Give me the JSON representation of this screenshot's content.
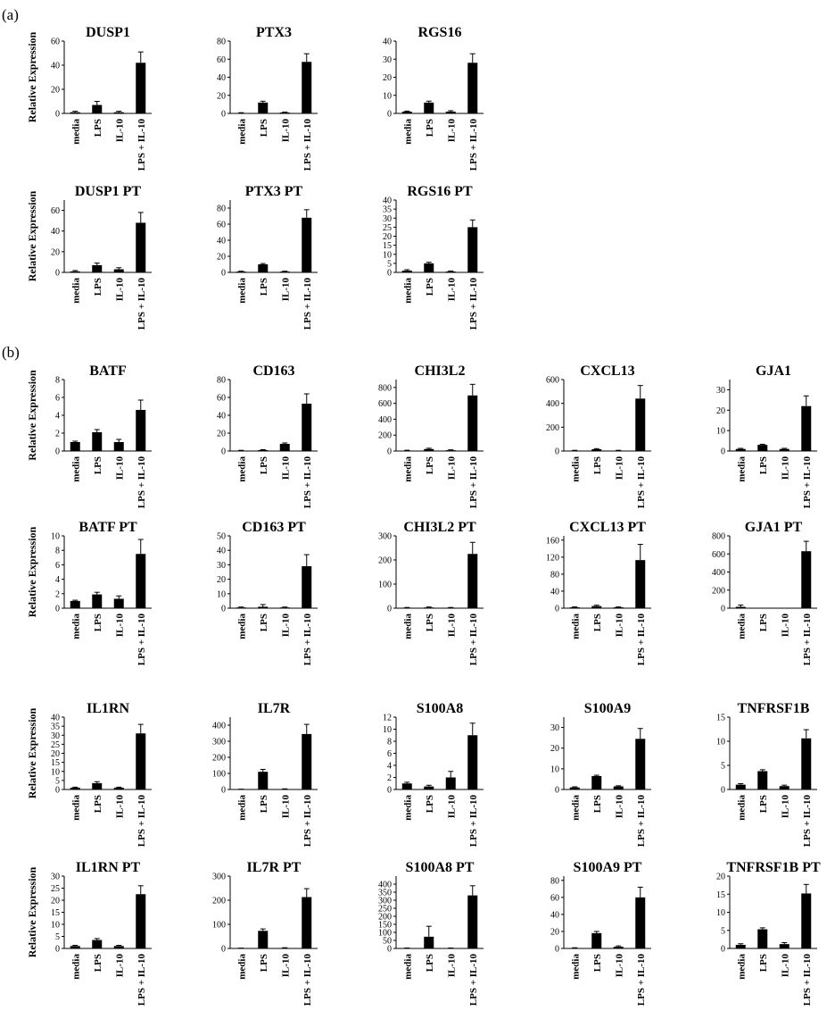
{
  "figure": {
    "panel_labels": [
      "(a)",
      "(b)"
    ],
    "ylabel": "Relative Expression"
  },
  "chart_data": [
    {
      "type": "bar",
      "title": "DUSP1",
      "categories": [
        "media",
        "LPS",
        "IL-10",
        "LPS + IL-10"
      ],
      "values": [
        1,
        7,
        1,
        42
      ],
      "errors": [
        0.8,
        3,
        0.8,
        9
      ],
      "ylim": [
        0,
        60
      ],
      "yticks": [
        0,
        20,
        40,
        60
      ],
      "ylabel": "Relative Expression",
      "grid": false
    },
    {
      "type": "bar",
      "title": "PTX3",
      "categories": [
        "media",
        "LPS",
        "IL-10",
        "LPS + IL-10"
      ],
      "values": [
        0.5,
        12,
        1,
        57
      ],
      "errors": [
        0.3,
        1.5,
        0.5,
        9
      ],
      "ylim": [
        0,
        80
      ],
      "yticks": [
        0,
        20,
        40,
        60,
        80
      ],
      "grid": false
    },
    {
      "type": "bar",
      "title": "RGS16",
      "categories": [
        "media",
        "LPS",
        "IL-10",
        "LPS + IL-10"
      ],
      "values": [
        1,
        6,
        1,
        28
      ],
      "errors": [
        0.3,
        0.8,
        0.5,
        5
      ],
      "ylim": [
        0,
        40
      ],
      "yticks": [
        0,
        10,
        20,
        30,
        40
      ],
      "grid": false
    },
    {
      "type": "bar",
      "title": "DUSP1 PT",
      "categories": [
        "media",
        "LPS",
        "IL-10",
        "LPS + IL-10"
      ],
      "values": [
        1,
        7,
        3,
        48
      ],
      "errors": [
        0.8,
        2,
        1.5,
        10
      ],
      "ylim": [
        0,
        70
      ],
      "yticks": [
        0,
        20,
        40,
        60
      ],
      "ylabel": "Relative Expression",
      "grid": false
    },
    {
      "type": "bar",
      "title": "PTX3 PT",
      "categories": [
        "media",
        "LPS",
        "IL-10",
        "LPS + IL-10"
      ],
      "values": [
        1,
        10,
        1,
        68
      ],
      "errors": [
        0.5,
        1,
        0.5,
        10
      ],
      "ylim": [
        0,
        90
      ],
      "yticks": [
        0,
        20,
        40,
        60,
        80
      ],
      "grid": false
    },
    {
      "type": "bar",
      "title": "RGS16 PT",
      "categories": [
        "media",
        "LPS",
        "IL-10",
        "LPS + IL-10"
      ],
      "values": [
        1,
        5,
        0.5,
        25
      ],
      "errors": [
        0.5,
        0.6,
        0.3,
        4
      ],
      "ylim": [
        0,
        40
      ],
      "yticks": [
        0,
        5,
        10,
        15,
        20,
        25,
        30,
        35,
        40
      ],
      "grid": false
    },
    {
      "type": "bar",
      "title": "BATF",
      "categories": [
        "media",
        "LPS",
        "IL-10",
        "LPS + IL-10"
      ],
      "values": [
        1,
        2.1,
        1,
        4.6
      ],
      "errors": [
        0.1,
        0.3,
        0.3,
        1.1
      ],
      "ylim": [
        0,
        8
      ],
      "yticks": [
        0,
        2,
        4,
        6,
        8
      ],
      "ylabel": "Relative Expression",
      "grid": false
    },
    {
      "type": "bar",
      "title": "CD163",
      "categories": [
        "media",
        "LPS",
        "IL-10",
        "LPS + IL-10"
      ],
      "values": [
        0.5,
        1,
        8,
        53
      ],
      "errors": [
        0.3,
        0.5,
        1,
        11
      ],
      "ylim": [
        0,
        80
      ],
      "yticks": [
        0,
        20,
        40,
        60,
        80
      ],
      "grid": false
    },
    {
      "type": "bar",
      "title": "CHI3L2",
      "categories": [
        "media",
        "LPS",
        "IL-10",
        "LPS + IL-10"
      ],
      "values": [
        5,
        25,
        10,
        700
      ],
      "errors": [
        5,
        10,
        5,
        140
      ],
      "ylim": [
        0,
        900
      ],
      "yticks": [
        0,
        200,
        400,
        600,
        800
      ],
      "grid": false
    },
    {
      "type": "bar",
      "title": "CXCL13",
      "categories": [
        "media",
        "LPS",
        "IL-10",
        "LPS + IL-10"
      ],
      "values": [
        3,
        15,
        3,
        440
      ],
      "errors": [
        3,
        5,
        3,
        110
      ],
      "ylim": [
        0,
        600
      ],
      "yticks": [
        0,
        200,
        400,
        600
      ],
      "grid": false
    },
    {
      "type": "bar",
      "title": "GJA1",
      "categories": [
        "media",
        "LPS",
        "IL-10",
        "LPS + IL-10"
      ],
      "values": [
        1,
        3,
        1,
        22
      ],
      "errors": [
        0.3,
        0.3,
        0.3,
        5
      ],
      "ylim": [
        0,
        35
      ],
      "yticks": [
        0,
        10,
        20,
        30
      ],
      "grid": false
    },
    {
      "type": "bar",
      "title": "BATF PT",
      "categories": [
        "media",
        "LPS",
        "IL-10",
        "LPS + IL-10"
      ],
      "values": [
        1,
        1.9,
        1.3,
        7.5
      ],
      "errors": [
        0.1,
        0.3,
        0.4,
        2
      ],
      "ylim": [
        0,
        10
      ],
      "yticks": [
        0,
        2,
        4,
        6,
        8,
        10
      ],
      "ylabel": "Relative Expression",
      "grid": false
    },
    {
      "type": "bar",
      "title": "CD163 PT",
      "categories": [
        "media",
        "LPS",
        "IL-10",
        "LPS + IL-10"
      ],
      "values": [
        0.5,
        1,
        0.5,
        29
      ],
      "errors": [
        0.3,
        1.5,
        0.3,
        8
      ],
      "ylim": [
        0,
        50
      ],
      "yticks": [
        0,
        10,
        20,
        30,
        40,
        50
      ],
      "grid": false
    },
    {
      "type": "bar",
      "title": "CHI3L2 PT",
      "categories": [
        "media",
        "LPS",
        "IL-10",
        "LPS + IL-10"
      ],
      "values": [
        2,
        3,
        2,
        225
      ],
      "errors": [
        1,
        2,
        1,
        48
      ],
      "ylim": [
        0,
        300
      ],
      "yticks": [
        0,
        100,
        200,
        300
      ],
      "grid": false
    },
    {
      "type": "bar",
      "title": "CXCL13 PT",
      "categories": [
        "media",
        "LPS",
        "IL-10",
        "LPS + IL-10"
      ],
      "values": [
        2,
        5,
        2,
        113
      ],
      "errors": [
        1,
        2,
        1,
        37
      ],
      "ylim": [
        0,
        170
      ],
      "yticks": [
        0,
        40,
        80,
        120,
        160
      ],
      "grid": false
    },
    {
      "type": "bar",
      "title": "GJA1 PT",
      "categories": [
        "media",
        "LPS",
        "IL-10",
        "LPS + IL-10"
      ],
      "values": [
        15,
        0,
        0,
        630
      ],
      "errors": [
        20,
        0,
        0,
        110
      ],
      "ylim": [
        0,
        800
      ],
      "yticks": [
        0,
        200,
        400,
        600,
        800
      ],
      "grid": false
    },
    {
      "type": "bar",
      "title": "IL1RN",
      "categories": [
        "media",
        "LPS",
        "IL-10",
        "LPS + IL-10"
      ],
      "values": [
        1,
        3.5,
        1,
        31
      ],
      "errors": [
        0.3,
        0.8,
        0.3,
        5
      ],
      "ylim": [
        0,
        40
      ],
      "yticks": [
        0,
        5,
        10,
        15,
        20,
        25,
        30,
        35,
        40
      ],
      "ylabel": "Relative Expression",
      "grid": false
    },
    {
      "type": "bar",
      "title": "IL7R",
      "categories": [
        "media",
        "LPS",
        "IL-10",
        "LPS + IL-10"
      ],
      "values": [
        1,
        110,
        2,
        345
      ],
      "errors": [
        1,
        15,
        2,
        60
      ],
      "ylim": [
        0,
        450
      ],
      "yticks": [
        0,
        100,
        200,
        300,
        400
      ],
      "grid": false
    },
    {
      "type": "bar",
      "title": "S100A8",
      "categories": [
        "media",
        "LPS",
        "IL-10",
        "LPS + IL-10"
      ],
      "values": [
        1,
        0.5,
        2,
        9
      ],
      "errors": [
        0.2,
        0.2,
        1,
        2
      ],
      "ylim": [
        0,
        12
      ],
      "yticks": [
        0,
        2,
        4,
        6,
        8,
        10,
        12
      ],
      "grid": false
    },
    {
      "type": "bar",
      "title": "S100A9",
      "categories": [
        "media",
        "LPS",
        "IL-10",
        "LPS + IL-10"
      ],
      "values": [
        1,
        6.5,
        1.5,
        24.5
      ],
      "errors": [
        0.3,
        0.4,
        0.3,
        5
      ],
      "ylim": [
        0,
        35
      ],
      "yticks": [
        0,
        10,
        20,
        30
      ],
      "grid": false
    },
    {
      "type": "bar",
      "title": "TNFRSF1B",
      "categories": [
        "media",
        "LPS",
        "IL-10",
        "LPS + IL-10"
      ],
      "values": [
        1,
        3.8,
        0.7,
        10.6
      ],
      "errors": [
        0.2,
        0.3,
        0.2,
        1.8
      ],
      "ylim": [
        0,
        15
      ],
      "yticks": [
        0,
        5,
        10,
        15
      ],
      "grid": false
    },
    {
      "type": "bar",
      "title": "IL1RN PT",
      "categories": [
        "media",
        "LPS",
        "IL-10",
        "LPS + IL-10"
      ],
      "values": [
        1,
        3.5,
        1,
        22.5
      ],
      "errors": [
        0.3,
        0.6,
        0.3,
        3.5
      ],
      "ylim": [
        0,
        30
      ],
      "yticks": [
        0,
        5,
        10,
        15,
        20,
        25,
        30
      ],
      "ylabel": "Relative Expression",
      "grid": false
    },
    {
      "type": "bar",
      "title": "IL7R PT",
      "categories": [
        "media",
        "LPS",
        "IL-10",
        "LPS + IL-10"
      ],
      "values": [
        1,
        73,
        2,
        213
      ],
      "errors": [
        0.5,
        8,
        1,
        35
      ],
      "ylim": [
        0,
        300
      ],
      "yticks": [
        0,
        100,
        200,
        300
      ],
      "grid": false
    },
    {
      "type": "bar",
      "title": "S100A8 PT",
      "categories": [
        "media",
        "LPS",
        "IL-10",
        "LPS + IL-10"
      ],
      "values": [
        2,
        73,
        2,
        330
      ],
      "errors": [
        1,
        65,
        1,
        60
      ],
      "ylim": [
        0,
        450
      ],
      "yticks": [
        0,
        50,
        100,
        150,
        200,
        250,
        300,
        350,
        400
      ],
      "grid": false
    },
    {
      "type": "bar",
      "title": "S100A9 PT",
      "categories": [
        "media",
        "LPS",
        "IL-10",
        "LPS + IL-10"
      ],
      "values": [
        0.5,
        18,
        2,
        60
      ],
      "errors": [
        0.3,
        2,
        1,
        12
      ],
      "ylim": [
        0,
        85
      ],
      "yticks": [
        0,
        20,
        40,
        60,
        80
      ],
      "grid": false
    },
    {
      "type": "bar",
      "title": "TNFRSF1B PT",
      "categories": [
        "media",
        "LPS",
        "IL-10",
        "LPS + IL-10"
      ],
      "values": [
        1,
        5.3,
        1.2,
        15.2
      ],
      "errors": [
        0.3,
        0.4,
        0.4,
        2.5
      ],
      "ylim": [
        0,
        20
      ],
      "yticks": [
        0,
        5,
        10,
        15,
        20
      ],
      "grid": false
    }
  ]
}
